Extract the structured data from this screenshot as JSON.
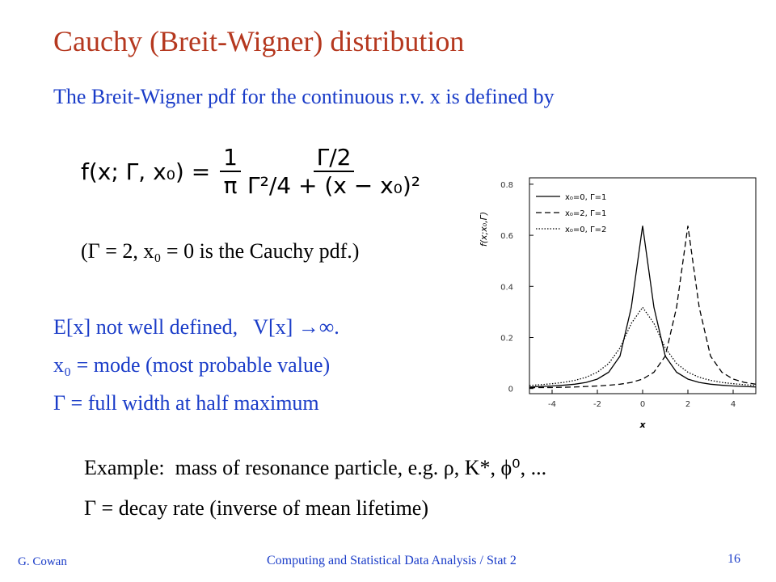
{
  "slide": {
    "title": "Cauchy (Breit-Wigner) distribution",
    "subtitle": "The Breit-Wigner pdf for the continuous r.v. x is defined by",
    "formula": {
      "lhs": "f(x; Γ, x₀) =",
      "factor_num": "1",
      "factor_den": "π",
      "num": "Γ/2",
      "den": "Γ²/4 + (x − x₀)²"
    },
    "note": "(Γ = 2, x₀ = 0 is the Cauchy pdf.)",
    "points": [
      "E[x] not well defined,   V[x] →∞.",
      "x₀ = mode (most probable value)",
      "Γ = full width at half maximum"
    ],
    "example": [
      "Example:  mass of resonance particle, e.g. ρ, K*, ϕ⁰, ...",
      "Γ = decay rate (inverse of mean lifetime)"
    ],
    "footer": {
      "author": "G. Cowan",
      "course": "Computing and Statistical Data Analysis / Stat 2",
      "page": "16"
    }
  },
  "chart_data": {
    "type": "line",
    "x_label": "x",
    "y_label": "f(x;x₀,Γ)",
    "x": [
      -5,
      -4.5,
      -4,
      -3.5,
      -3,
      -2.5,
      -2,
      -1.5,
      -1,
      -0.5,
      0,
      0.5,
      1,
      1.5,
      2,
      2.5,
      3,
      3.5,
      4,
      4.5,
      5
    ],
    "series": [
      {
        "name": "x₀=0, Γ=1",
        "color": "#000000",
        "style": "solid",
        "values": [
          0.006,
          0.008,
          0.01,
          0.013,
          0.017,
          0.024,
          0.037,
          0.064,
          0.127,
          0.318,
          0.637,
          0.318,
          0.127,
          0.064,
          0.037,
          0.024,
          0.017,
          0.013,
          0.01,
          0.008,
          0.006
        ]
      },
      {
        "name": "x₀=2, Γ=1",
        "color": "#000000",
        "style": "dashed",
        "values": [
          0.003,
          0.004,
          0.004,
          0.005,
          0.006,
          0.008,
          0.01,
          0.013,
          0.017,
          0.024,
          0.037,
          0.064,
          0.127,
          0.318,
          0.637,
          0.318,
          0.127,
          0.064,
          0.037,
          0.024,
          0.017
        ]
      },
      {
        "name": "x₀=0, Γ=2",
        "color": "#000000",
        "style": "dotted",
        "values": [
          0.012,
          0.015,
          0.019,
          0.024,
          0.032,
          0.044,
          0.064,
          0.098,
          0.159,
          0.255,
          0.318,
          0.255,
          0.159,
          0.098,
          0.064,
          0.044,
          0.032,
          0.024,
          0.019,
          0.015,
          0.012
        ]
      }
    ],
    "xlim": [
      -5,
      5
    ],
    "ylim": [
      -0.02,
      0.825
    ],
    "xticks": [
      -4,
      -2,
      0,
      2,
      4
    ],
    "yticks": [
      0,
      0.2,
      0.4,
      0.6,
      0.8
    ],
    "legend": "upper left"
  }
}
